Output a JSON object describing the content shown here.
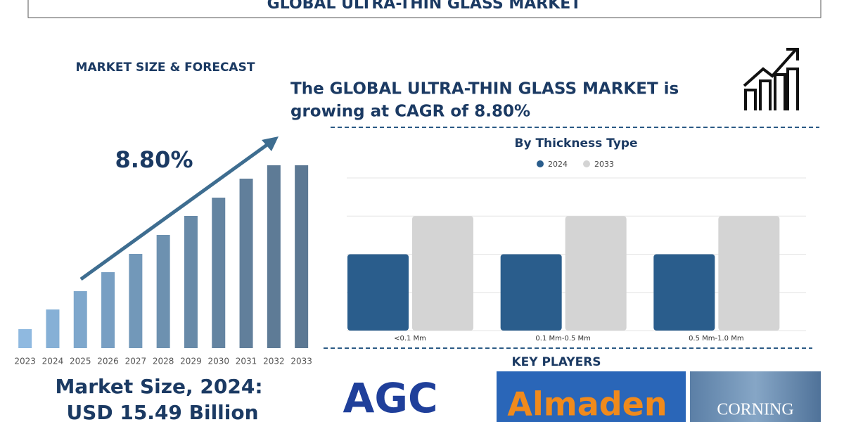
{
  "header": {
    "title": "GLOBAL ULTRA-THIN GLASS MARKET"
  },
  "section_title": "MARKET SIZE & FORECAST",
  "headline": [
    "The GLOBAL ULTRA-THIN GLASS MARKET is",
    "growing at CAGR of 8.80%"
  ],
  "cagr": "8.80%",
  "market_size": [
    "Market Size, 2024:",
    "USD 15.49 Billion"
  ],
  "key_players_title": "KEY PLAYERS",
  "key_players": [
    "AGC",
    "Almaden",
    "CORNING"
  ],
  "chart_data": [
    {
      "type": "bar",
      "categories": [
        "2023",
        "2024",
        "2025",
        "2026",
        "2027",
        "2028",
        "2029",
        "2030",
        "2031",
        "2032",
        "2033"
      ],
      "values": [
        27,
        55,
        81,
        108,
        134,
        161,
        188,
        214,
        241,
        260,
        260
      ],
      "colors": [
        "#8fb9e0",
        "#86b0d6",
        "#7ea7cc",
        "#789fc3",
        "#7298b9",
        "#6d91b0",
        "#688aa8",
        "#6484a1",
        "#617f9b",
        "#5e7b96",
        "#5c7893"
      ],
      "ylim": [
        0,
        260
      ]
    },
    {
      "type": "grouped-bar",
      "title": "By Thickness Type",
      "categories": [
        "<0.1 Mm",
        "0.1 Mm-0.5 Mm",
        "0.5 Mm-1.0 Mm"
      ],
      "series": [
        {
          "name": "2024",
          "color": "#2a5d8c",
          "values": [
            2,
            2,
            2
          ]
        },
        {
          "name": "2033",
          "color": "#d4d4d4",
          "values": [
            3,
            3,
            3
          ]
        }
      ],
      "ylim": [
        0,
        4
      ],
      "yticks": [
        0,
        1,
        2,
        3,
        4
      ],
      "grid": true
    }
  ]
}
